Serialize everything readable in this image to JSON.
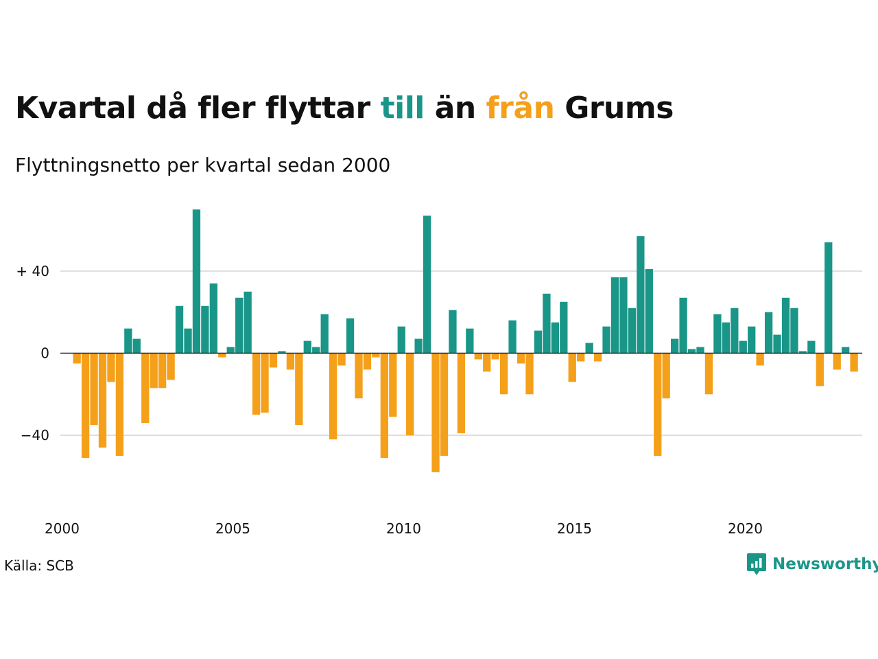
{
  "title": {
    "part1": "Kvartal då fler flyttar",
    "pos_word": "till",
    "part2": "än",
    "neg_word": "från",
    "part3": "Grums"
  },
  "subtitle": "Flyttningsnetto per kvartal sedan 2000",
  "source": "Källa: SCB",
  "brand": "Newsworthy",
  "colors": {
    "positive": "#1a9688",
    "negative": "#f5a01a",
    "grid": "#dddddd",
    "zero": "#222222"
  },
  "chart_data": {
    "type": "bar",
    "title": "Kvartal då fler flyttar till än från Grums",
    "subtitle": "Flyttningsnetto per kvartal sedan 2000",
    "ylim": [
      -65,
      72
    ],
    "yticks": [
      {
        "value": 40,
        "label": "+ 40"
      },
      {
        "value": 0,
        "label": "0"
      },
      {
        "value": -40,
        "label": "−40"
      }
    ],
    "xticks": [
      {
        "year": 2000,
        "label": "2000"
      },
      {
        "year": 2005,
        "label": "2005"
      },
      {
        "year": 2010,
        "label": "2010"
      },
      {
        "year": 2015,
        "label": "2015"
      },
      {
        "year": 2020,
        "label": "2020"
      }
    ],
    "grid": true,
    "start": "2000-Q1",
    "values": [
      -5,
      -51,
      -35,
      -46,
      -14,
      -50,
      12,
      7,
      -34,
      -17,
      -17,
      -13,
      23,
      12,
      70,
      23,
      34,
      -2,
      3,
      27,
      30,
      -30,
      -29,
      -7,
      1,
      -8,
      -35,
      6,
      3,
      19,
      -42,
      -6,
      17,
      -22,
      -8,
      -2,
      -51,
      -31,
      13,
      -40,
      7,
      67,
      -58,
      -50,
      21,
      -39,
      12,
      -3,
      -9,
      -3,
      -20,
      16,
      -5,
      -20,
      11,
      29,
      15,
      25,
      -14,
      -4,
      5,
      -4,
      13,
      37,
      37,
      22,
      57,
      41,
      -50,
      -22,
      7,
      27,
      2,
      3,
      -20,
      19,
      15,
      22,
      6,
      13,
      -6,
      20,
      9,
      27,
      22,
      1,
      6,
      -16,
      54,
      -8,
      3,
      -9
    ]
  }
}
